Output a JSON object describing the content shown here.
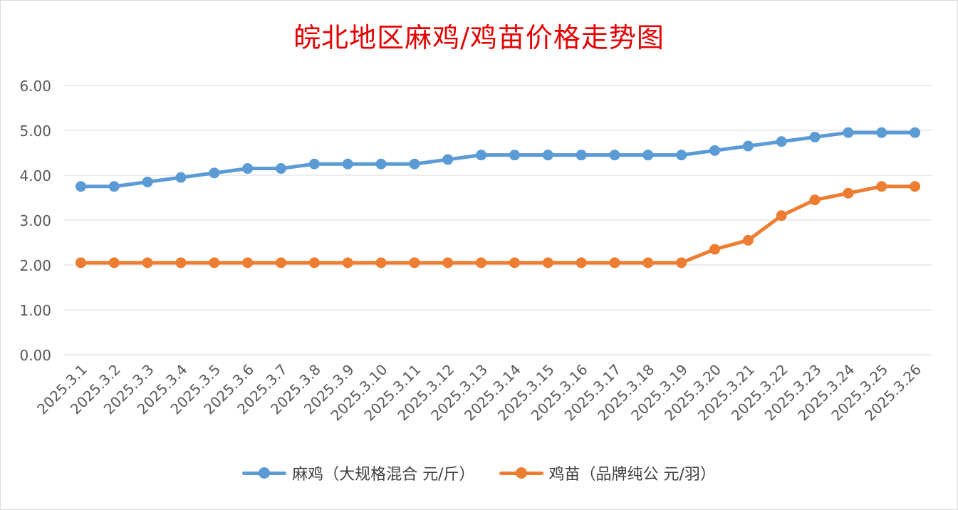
{
  "chart_data": {
    "type": "line",
    "title": "皖北地区麻鸡/鸡苗价格走势图",
    "categories": [
      "2025.3.1",
      "2025.3.2",
      "2025.3.3",
      "2025.3.4",
      "2025.3.5",
      "2025.3.6",
      "2025.3.7",
      "2025.3.8",
      "2025.3.9",
      "2025.3.10",
      "2025.3.11",
      "2025.3.12",
      "2025.3.13",
      "2025.3.14",
      "2025.3.15",
      "2025.3.16",
      "2025.3.17",
      "2025.3.18",
      "2025.3.19",
      "2025.3.20",
      "2025.3.21",
      "2025.3.22",
      "2025.3.23",
      "2025.3.24",
      "2025.3.25",
      "2025.3.26"
    ],
    "series": [
      {
        "name": "麻鸡（大规格混合 元/斤）",
        "color": "#5b9bd5",
        "values": [
          3.75,
          3.75,
          3.85,
          3.95,
          4.05,
          4.15,
          4.15,
          4.25,
          4.25,
          4.25,
          4.25,
          4.35,
          4.45,
          4.45,
          4.45,
          4.45,
          4.45,
          4.45,
          4.45,
          4.55,
          4.65,
          4.75,
          4.85,
          4.95,
          4.95,
          4.95
        ]
      },
      {
        "name": "鸡苗（品牌纯公 元/羽）",
        "color": "#ed7d31",
        "values": [
          2.05,
          2.05,
          2.05,
          2.05,
          2.05,
          2.05,
          2.05,
          2.05,
          2.05,
          2.05,
          2.05,
          2.05,
          2.05,
          2.05,
          2.05,
          2.05,
          2.05,
          2.05,
          2.05,
          2.35,
          2.55,
          3.1,
          3.45,
          3.6,
          3.75,
          3.75
        ]
      }
    ],
    "ylim": [
      0,
      6
    ],
    "yticks": [
      "0.00",
      "1.00",
      "2.00",
      "3.00",
      "4.00",
      "5.00",
      "6.00"
    ],
    "grid": true,
    "legend": "bottom"
  }
}
